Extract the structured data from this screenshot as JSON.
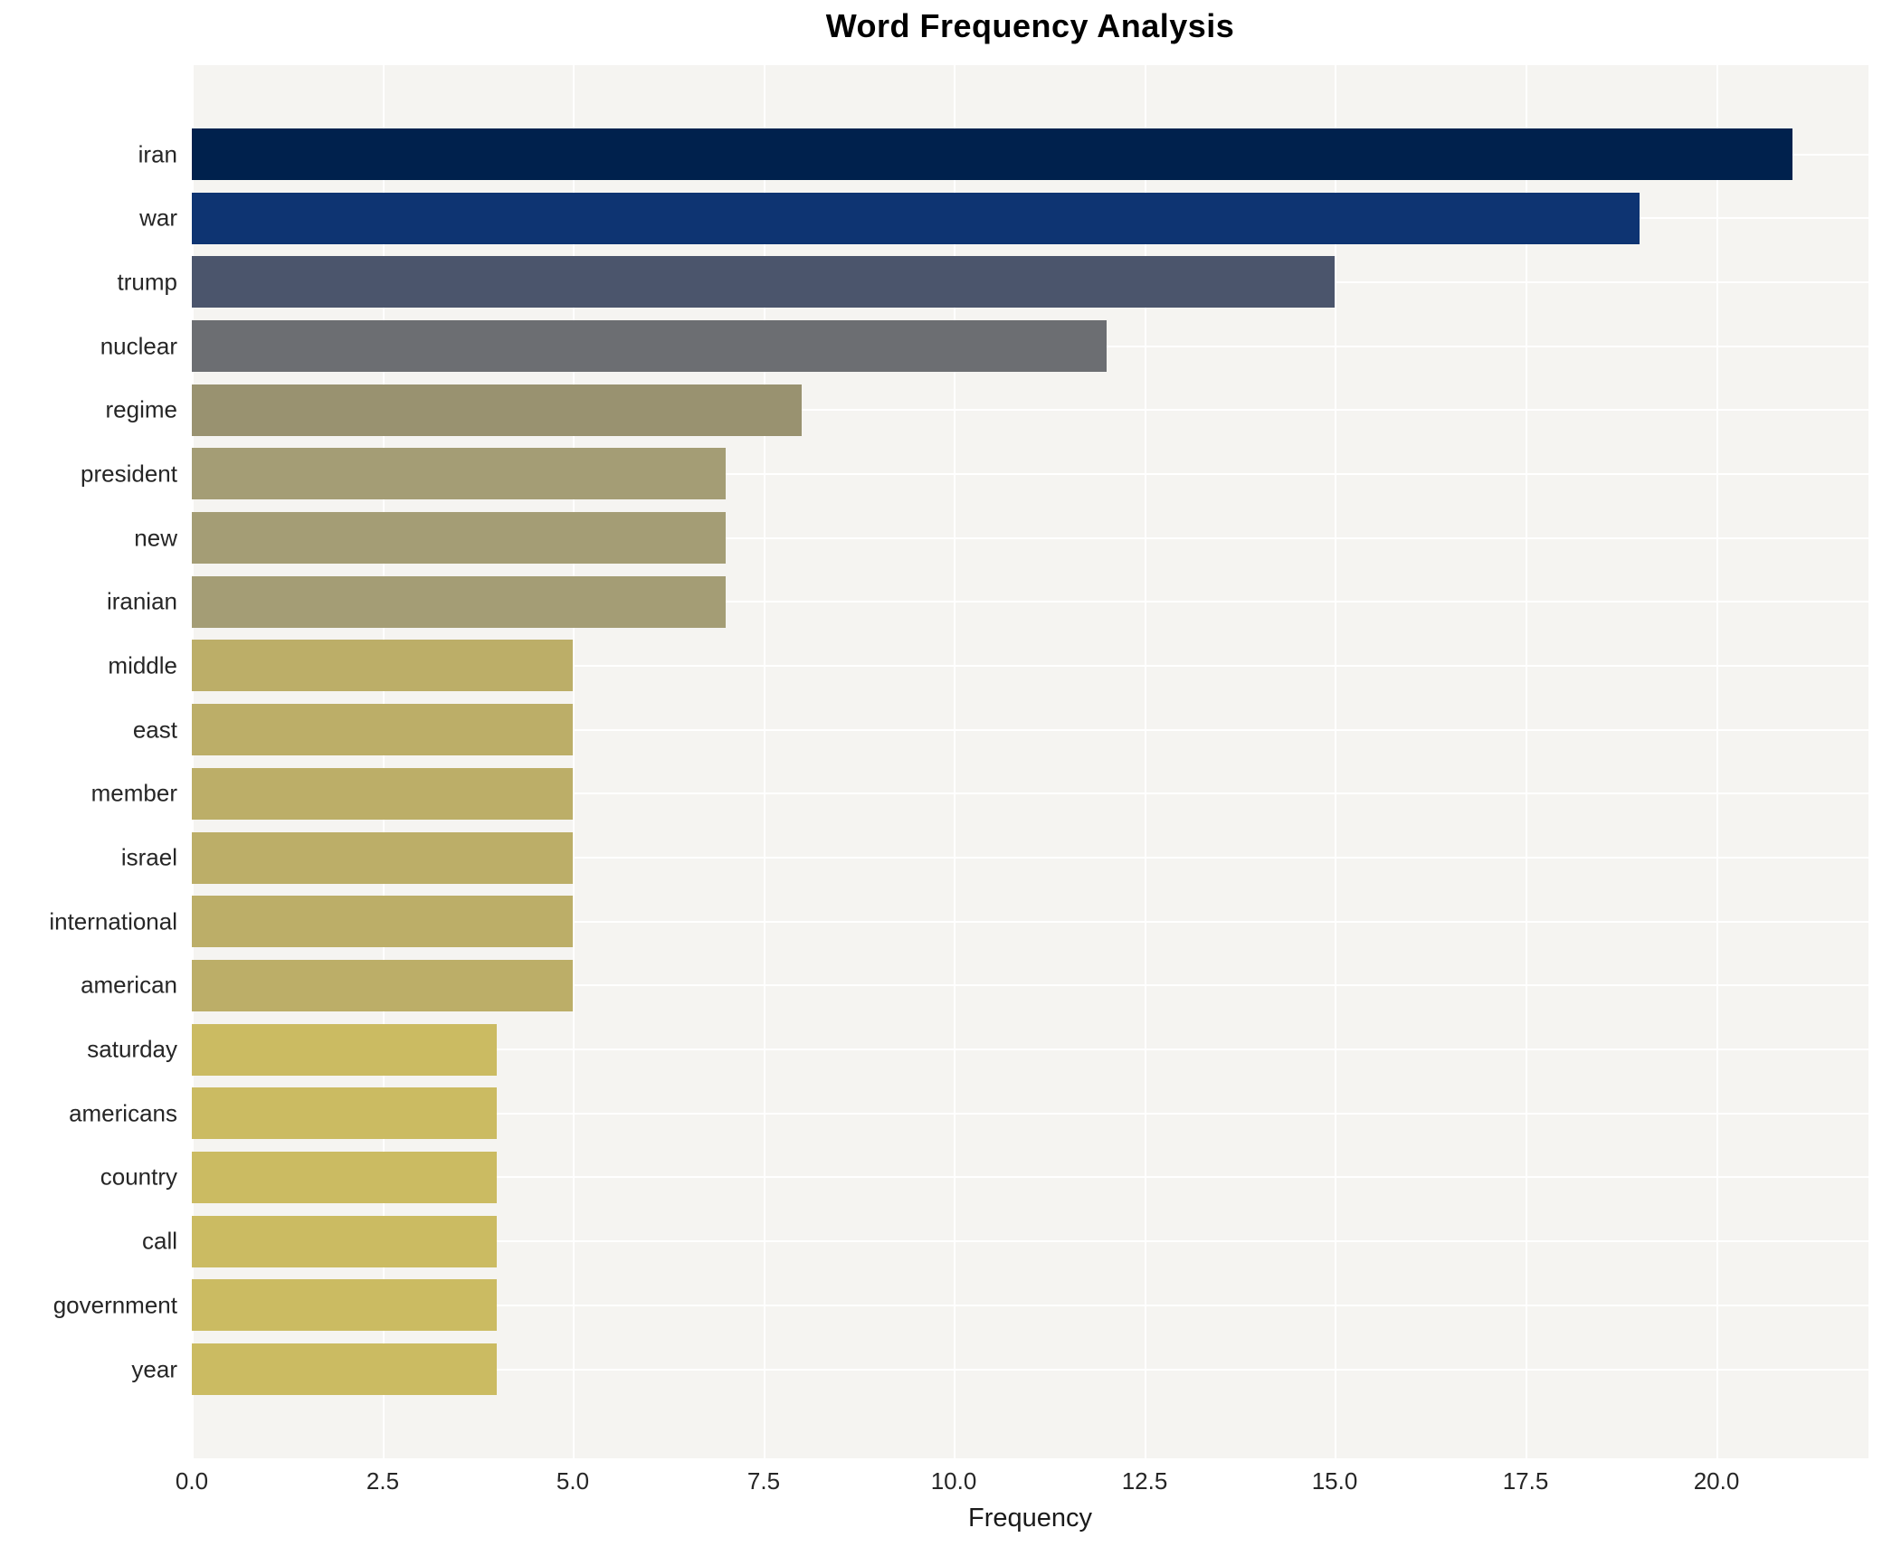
{
  "chart_data": {
    "type": "bar",
    "orientation": "horizontal",
    "title": "Word Frequency Analysis",
    "xlabel": "Frequency",
    "ylabel": "",
    "categories": [
      "iran",
      "war",
      "trump",
      "nuclear",
      "regime",
      "president",
      "new",
      "iranian",
      "middle",
      "east",
      "member",
      "israel",
      "international",
      "american",
      "saturday",
      "americans",
      "country",
      "call",
      "government",
      "year"
    ],
    "values": [
      21,
      19,
      15,
      12,
      8,
      7,
      7,
      7,
      5,
      5,
      5,
      5,
      5,
      5,
      4,
      4,
      4,
      4,
      4,
      4
    ],
    "bar_colors": [
      "#00214d",
      "#0e3472",
      "#4b556c",
      "#6c6e72",
      "#999270",
      "#a49d75",
      "#a49d75",
      "#a49d75",
      "#bcae68",
      "#bcae68",
      "#bcae68",
      "#bcae68",
      "#bcae68",
      "#bcae68",
      "#cbbb62",
      "#cbbb62",
      "#cbbb62",
      "#cbbb62",
      "#cbbb62",
      "#cbbb62"
    ],
    "xlim": [
      0.0,
      22.0
    ],
    "xticks": [
      "0.0",
      "2.5",
      "5.0",
      "7.5",
      "10.0",
      "12.5",
      "15.0",
      "17.5",
      "20.0"
    ],
    "xtick_values": [
      0,
      2.5,
      5,
      7.5,
      10,
      12.5,
      15,
      17.5,
      20
    ],
    "grid": "on",
    "legend": "none",
    "plot_background": "#f5f4f1",
    "gridline_color": "#ffffff",
    "label_color": "#262626",
    "title_color": "#000000"
  }
}
